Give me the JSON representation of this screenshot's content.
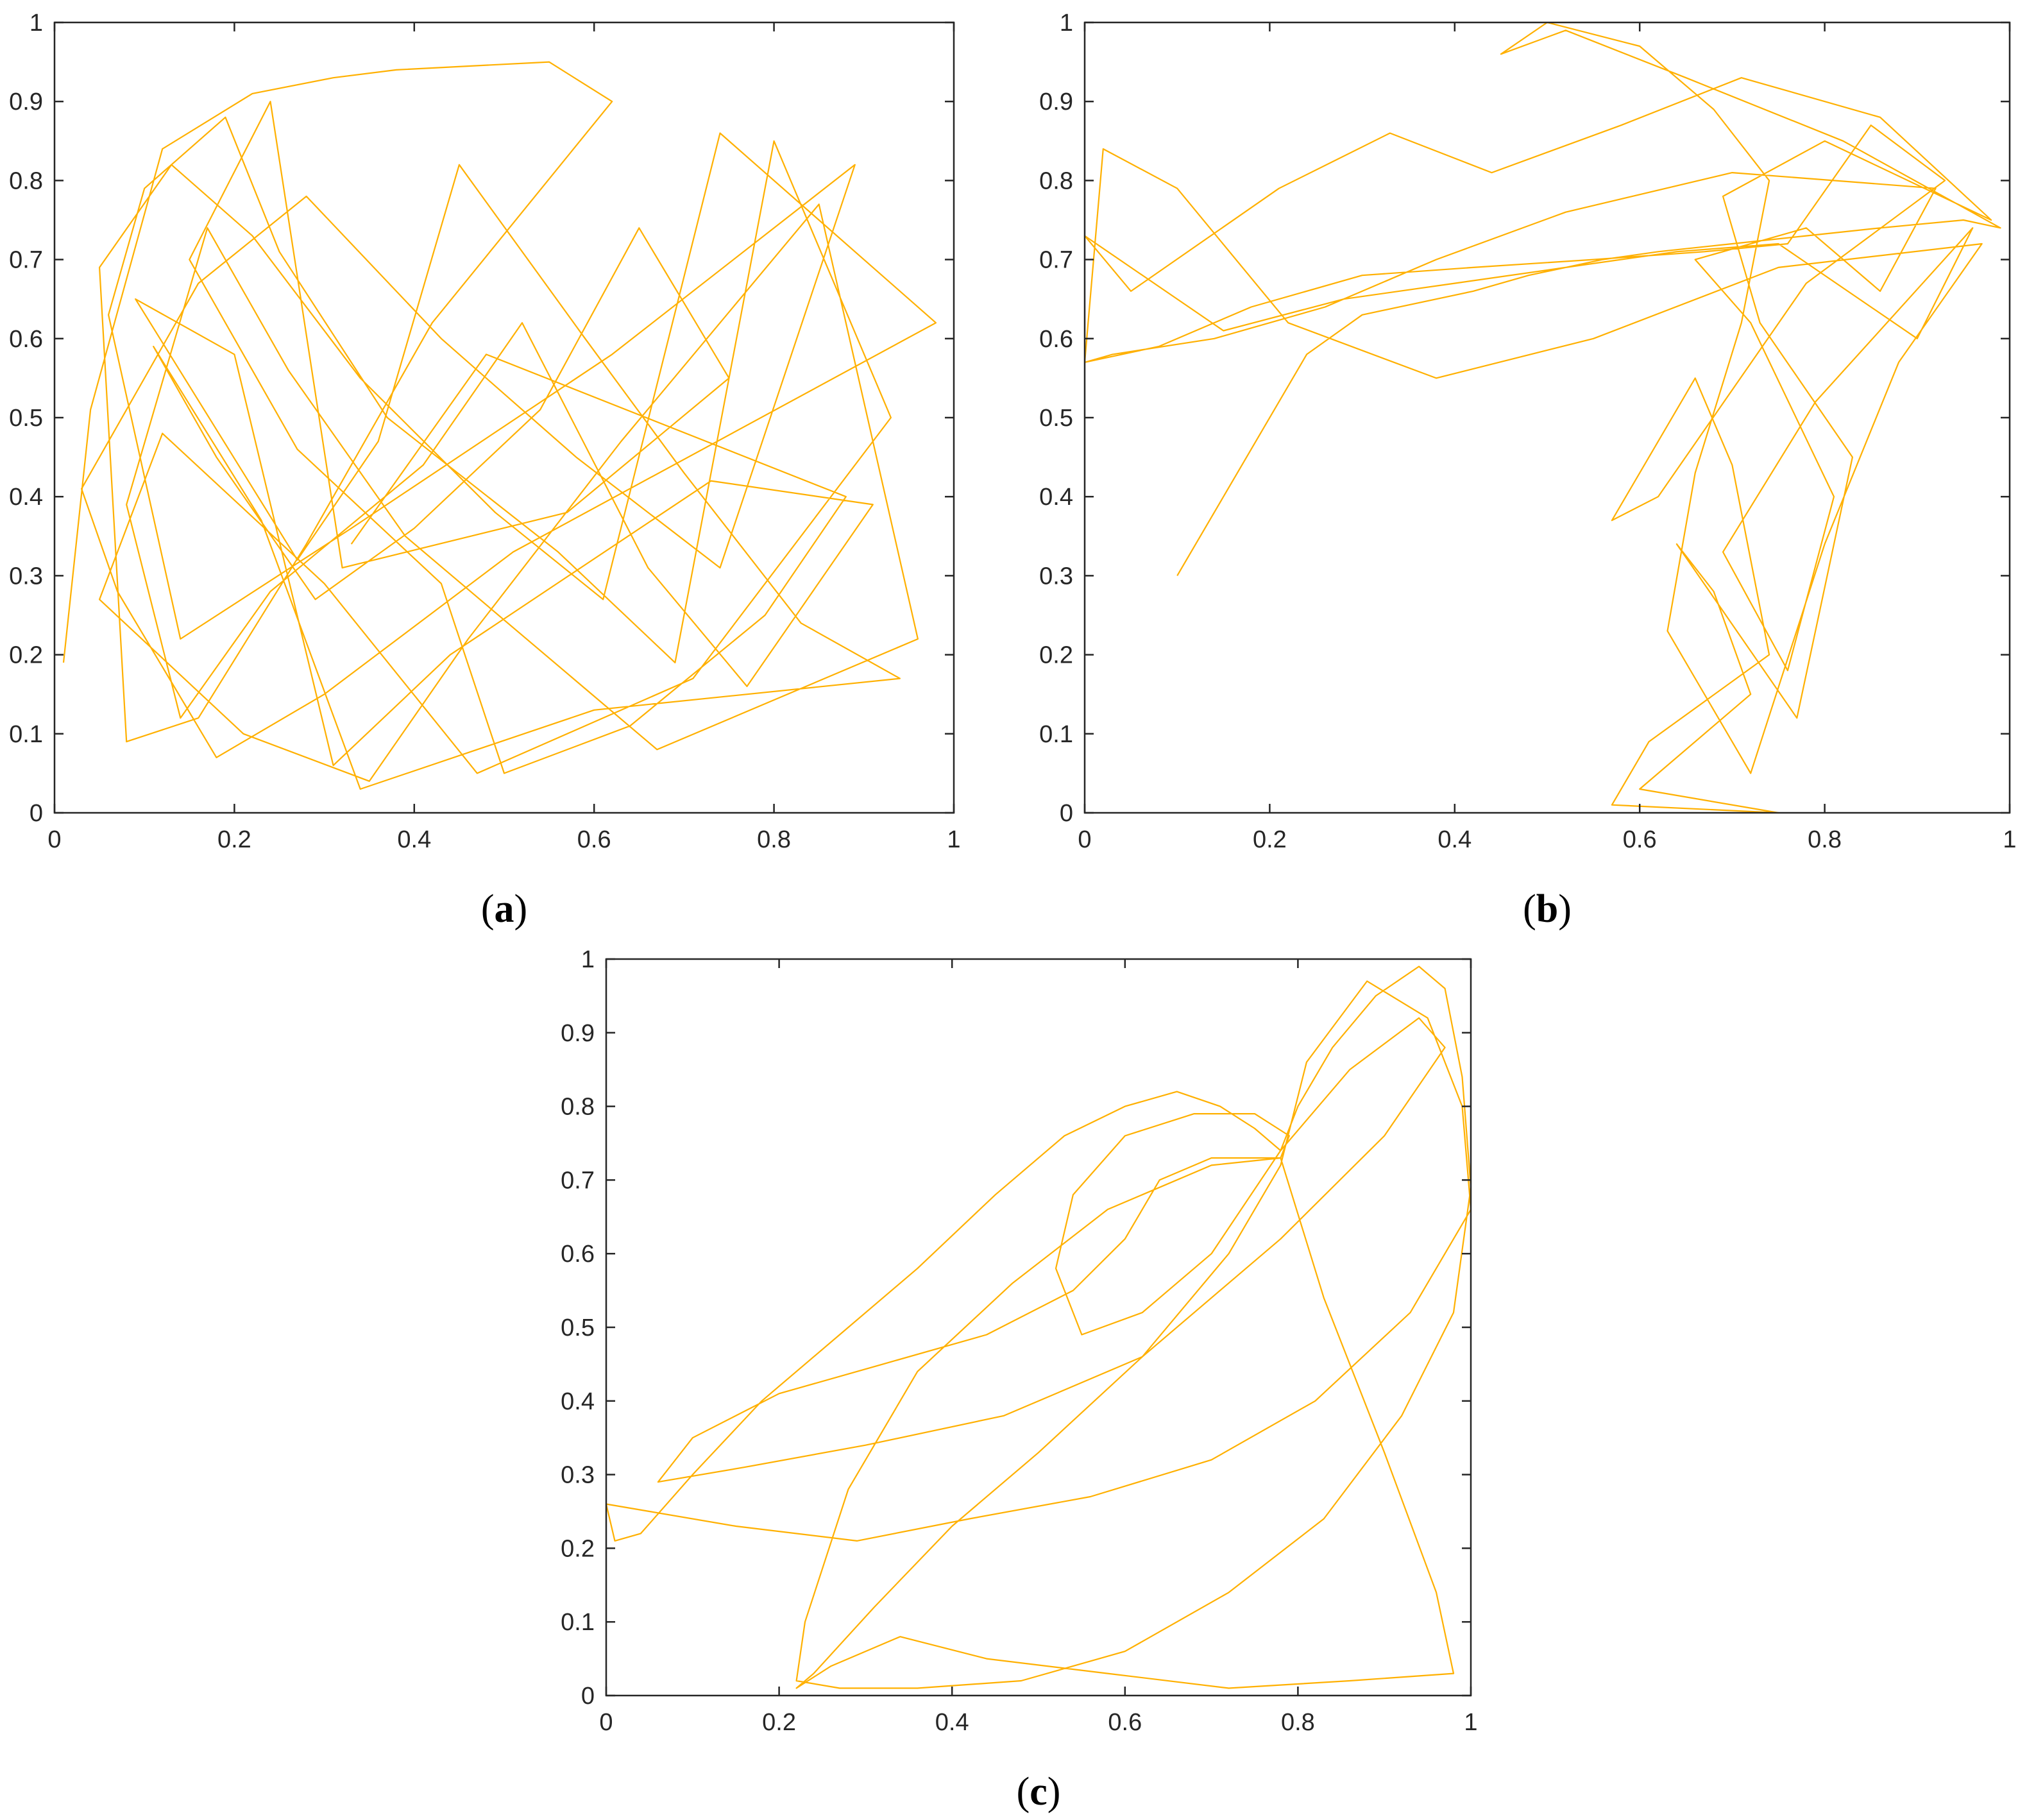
{
  "figure": {
    "line_color": "#FFB000",
    "axis_color": "#262626",
    "background": "#FFFFFF"
  },
  "chart_data": [
    {
      "id": "a",
      "type": "line",
      "caption": "(a)",
      "caption_open": "(",
      "caption_letter": "a",
      "caption_close": ")",
      "xlim": [
        0,
        1
      ],
      "ylim": [
        0,
        1
      ],
      "xticks": [
        0,
        0.2,
        0.4,
        0.6,
        0.8,
        1
      ],
      "yticks": [
        0,
        0.1,
        0.2,
        0.3,
        0.4,
        0.5,
        0.6,
        0.7,
        0.8,
        0.9,
        1
      ],
      "xtick_labels": [
        "0",
        "0.2",
        "0.4",
        "0.6",
        "0.8",
        "1"
      ],
      "ytick_labels": [
        "0",
        "0.1",
        "0.2",
        "0.3",
        "0.4",
        "0.5",
        "0.6",
        "0.7",
        "0.8",
        "0.9",
        "1"
      ],
      "title": "",
      "xlabel": "",
      "ylabel": "",
      "description": "dense chaotic trajectory filling most of the unit square, concentrated around (0.33, 0.33)",
      "series": [
        {
          "name": "trajectory",
          "x": [
            0.01,
            0.04,
            0.12,
            0.22,
            0.31,
            0.38,
            0.55,
            0.62,
            0.42,
            0.28,
            0.16,
            0.08,
            0.05,
            0.13,
            0.22,
            0.34,
            0.49,
            0.61,
            0.74,
            0.98,
            0.51,
            0.3,
            0.18,
            0.07,
            0.03,
            0.16,
            0.28,
            0.43,
            0.58,
            0.74,
            0.89,
            0.62,
            0.33,
            0.14,
            0.06,
            0.1,
            0.19,
            0.25,
            0.37,
            0.56,
            0.69,
            0.8,
            0.93,
            0.71,
            0.47,
            0.3,
            0.12,
            0.05,
            0.21,
            0.35,
            0.46,
            0.63,
            0.85,
            0.96,
            0.67,
            0.39,
            0.26,
            0.17,
            0.08,
            0.14,
            0.24,
            0.41,
            0.52,
            0.66,
            0.77,
            0.91,
            0.73,
            0.44,
            0.31,
            0.2,
            0.09,
            0.27,
            0.36,
            0.45,
            0.59,
            0.7,
            0.83,
            0.94,
            0.6,
            0.34,
            0.23,
            0.11,
            0.18,
            0.29,
            0.4,
            0.54,
            0.65,
            0.75,
            0.57,
            0.32,
            0.24,
            0.15,
            0.27,
            0.43,
            0.5,
            0.64,
            0.79,
            0.88,
            0.48,
            0.33
          ],
          "y": [
            0.19,
            0.51,
            0.84,
            0.91,
            0.93,
            0.94,
            0.95,
            0.9,
            0.62,
            0.34,
            0.12,
            0.09,
            0.69,
            0.82,
            0.73,
            0.55,
            0.38,
            0.27,
            0.86,
            0.62,
            0.33,
            0.15,
            0.07,
            0.28,
            0.41,
            0.67,
            0.78,
            0.6,
            0.45,
            0.31,
            0.82,
            0.58,
            0.36,
            0.22,
            0.63,
            0.79,
            0.88,
            0.71,
            0.5,
            0.33,
            0.19,
            0.85,
            0.5,
            0.17,
            0.05,
            0.29,
            0.48,
            0.27,
            0.1,
            0.04,
            0.22,
            0.47,
            0.77,
            0.22,
            0.08,
            0.35,
            0.56,
            0.74,
            0.39,
            0.12,
            0.28,
            0.44,
            0.62,
            0.31,
            0.16,
            0.39,
            0.42,
            0.2,
            0.06,
            0.58,
            0.65,
            0.32,
            0.47,
            0.82,
            0.6,
            0.43,
            0.24,
            0.17,
            0.13,
            0.03,
            0.37,
            0.59,
            0.45,
            0.27,
            0.36,
            0.51,
            0.74,
            0.55,
            0.38,
            0.31,
            0.9,
            0.7,
            0.46,
            0.29,
            0.05,
            0.11,
            0.25,
            0.4,
            0.58,
            0.34
          ]
        }
      ]
    },
    {
      "id": "b",
      "type": "line",
      "caption": "(b)",
      "caption_open": "(",
      "caption_letter": "b",
      "caption_close": ")",
      "xlim": [
        0,
        1
      ],
      "ylim": [
        0,
        1
      ],
      "xticks": [
        0,
        0.2,
        0.4,
        0.6,
        0.8,
        1
      ],
      "yticks": [
        0,
        0.1,
        0.2,
        0.3,
        0.4,
        0.5,
        0.6,
        0.7,
        0.8,
        0.9,
        1
      ],
      "xtick_labels": [
        "0",
        "0.2",
        "0.4",
        "0.6",
        "0.8",
        "1"
      ],
      "ytick_labels": [
        "0",
        "0.1",
        "0.2",
        "0.3",
        "0.4",
        "0.5",
        "0.6",
        "0.7",
        "0.8",
        "0.9",
        "1"
      ],
      "title": "",
      "xlabel": "",
      "ylabel": "",
      "description": "trajectory starting at (0.1, 0.3), forming a band near y = 0.57-0.75 and a lobe descending from (0.7, 0.7) to (0.75, 0)",
      "series": [
        {
          "name": "trajectory",
          "x": [
            0.1,
            0.24,
            0.3,
            0.42,
            0.48,
            0.56,
            0.62,
            0.7,
            0.78,
            0.86,
            0.95,
            0.99,
            0.82,
            0.65,
            0.52,
            0.45,
            0.5,
            0.6,
            0.68,
            0.74,
            0.71,
            0.66,
            0.63,
            0.72,
            0.8,
            0.88,
            0.97,
            0.75,
            0.55,
            0.38,
            0.22,
            0.1,
            0.02,
            0.0,
            0.08,
            0.18,
            0.3,
            0.42,
            0.55,
            0.67,
            0.76,
            0.85,
            0.93,
            0.78,
            0.62,
            0.57,
            0.66,
            0.7,
            0.74,
            0.61,
            0.57,
            0.75,
            0.6,
            0.72,
            0.68,
            0.64,
            0.77,
            0.83,
            0.73,
            0.69,
            0.8,
            0.98,
            0.86,
            0.71,
            0.58,
            0.44,
            0.33,
            0.21,
            0.05,
            0.0,
            0.15,
            0.28,
            0.4,
            0.52,
            0.64,
            0.75,
            0.9,
            0.96,
            0.79,
            0.69,
            0.76,
            0.81,
            0.72,
            0.66,
            0.78,
            0.86,
            0.92,
            0.7,
            0.52,
            0.38,
            0.26,
            0.14,
            0.03,
            0.0
          ],
          "y": [
            0.3,
            0.58,
            0.63,
            0.66,
            0.68,
            0.7,
            0.71,
            0.72,
            0.73,
            0.74,
            0.75,
            0.74,
            0.85,
            0.93,
            0.99,
            0.96,
            1.0,
            0.97,
            0.89,
            0.8,
            0.62,
            0.43,
            0.23,
            0.05,
            0.34,
            0.57,
            0.72,
            0.69,
            0.6,
            0.55,
            0.62,
            0.79,
            0.84,
            0.57,
            0.59,
            0.64,
            0.68,
            0.69,
            0.7,
            0.71,
            0.72,
            0.87,
            0.8,
            0.67,
            0.4,
            0.37,
            0.55,
            0.44,
            0.2,
            0.09,
            0.01,
            0.0,
            0.03,
            0.15,
            0.28,
            0.34,
            0.12,
            0.45,
            0.62,
            0.78,
            0.85,
            0.75,
            0.88,
            0.93,
            0.87,
            0.81,
            0.86,
            0.79,
            0.66,
            0.73,
            0.61,
            0.65,
            0.67,
            0.69,
            0.71,
            0.72,
            0.6,
            0.74,
            0.52,
            0.33,
            0.18,
            0.4,
            0.62,
            0.7,
            0.74,
            0.66,
            0.79,
            0.81,
            0.76,
            0.7,
            0.64,
            0.6,
            0.58,
            0.57
          ]
        }
      ]
    },
    {
      "id": "c",
      "type": "line",
      "caption": "(c)",
      "caption_open": "(",
      "caption_letter": "c",
      "caption_close": ")",
      "xlim": [
        0,
        1
      ],
      "ylim": [
        0,
        1
      ],
      "xticks": [
        0,
        0.2,
        0.4,
        0.6,
        0.8,
        1
      ],
      "yticks": [
        0,
        0.1,
        0.2,
        0.3,
        0.4,
        0.5,
        0.6,
        0.7,
        0.8,
        0.9,
        1
      ],
      "xtick_labels": [
        "0",
        "0.2",
        "0.4",
        "0.6",
        "0.8",
        "1"
      ],
      "ytick_labels": [
        "0",
        "0.1",
        "0.2",
        "0.3",
        "0.4",
        "0.5",
        "0.6",
        "0.7",
        "0.8",
        "0.9",
        "1"
      ],
      "title": "",
      "xlabel": "",
      "ylabel": "",
      "description": "structured attractor forming a loop with a hole around (0.65, 0.7), converging at (0.78, 0.73), with sweeps down to (0.2-0.7, 0)",
      "series": [
        {
          "name": "trajectory",
          "x": [
            0.0,
            0.01,
            0.04,
            0.1,
            0.18,
            0.27,
            0.36,
            0.45,
            0.53,
            0.6,
            0.66,
            0.71,
            0.75,
            0.78,
            0.8,
            0.84,
            0.89,
            0.94,
            0.97,
            0.99,
            1.0,
            0.98,
            0.92,
            0.83,
            0.72,
            0.6,
            0.48,
            0.36,
            0.27,
            0.22,
            0.23,
            0.28,
            0.36,
            0.47,
            0.58,
            0.7,
            0.78,
            0.79,
            0.75,
            0.68,
            0.6,
            0.54,
            0.52,
            0.55,
            0.62,
            0.7,
            0.78,
            0.86,
            0.94,
            0.97,
            0.9,
            0.78,
            0.62,
            0.46,
            0.3,
            0.16,
            0.06,
            0.1,
            0.2,
            0.32,
            0.44,
            0.54,
            0.6,
            0.64,
            0.7,
            0.78,
            0.83,
            0.9,
            0.96,
            0.98,
            0.86,
            0.72,
            0.58,
            0.44,
            0.34,
            0.26,
            0.22,
            0.24,
            0.31,
            0.4,
            0.5,
            0.62,
            0.72,
            0.78,
            0.81,
            0.88,
            0.95,
            0.99,
            1.0,
            0.93,
            0.82,
            0.7,
            0.56,
            0.42,
            0.29,
            0.15,
            0.05,
            0.0
          ],
          "y": [
            0.26,
            0.21,
            0.22,
            0.3,
            0.4,
            0.49,
            0.58,
            0.68,
            0.76,
            0.8,
            0.82,
            0.8,
            0.77,
            0.74,
            0.8,
            0.88,
            0.95,
            0.99,
            0.96,
            0.84,
            0.69,
            0.52,
            0.38,
            0.24,
            0.14,
            0.06,
            0.02,
            0.01,
            0.01,
            0.02,
            0.1,
            0.28,
            0.44,
            0.56,
            0.66,
            0.72,
            0.73,
            0.76,
            0.79,
            0.79,
            0.76,
            0.68,
            0.58,
            0.49,
            0.52,
            0.6,
            0.74,
            0.85,
            0.92,
            0.88,
            0.76,
            0.62,
            0.46,
            0.38,
            0.34,
            0.31,
            0.29,
            0.35,
            0.41,
            0.45,
            0.49,
            0.55,
            0.62,
            0.7,
            0.73,
            0.73,
            0.54,
            0.33,
            0.14,
            0.03,
            0.02,
            0.01,
            0.03,
            0.05,
            0.08,
            0.04,
            0.01,
            0.03,
            0.12,
            0.23,
            0.33,
            0.46,
            0.6,
            0.72,
            0.86,
            0.97,
            0.92,
            0.8,
            0.66,
            0.52,
            0.4,
            0.32,
            0.27,
            0.24,
            0.21,
            0.23,
            0.25,
            0.26
          ]
        }
      ]
    }
  ]
}
